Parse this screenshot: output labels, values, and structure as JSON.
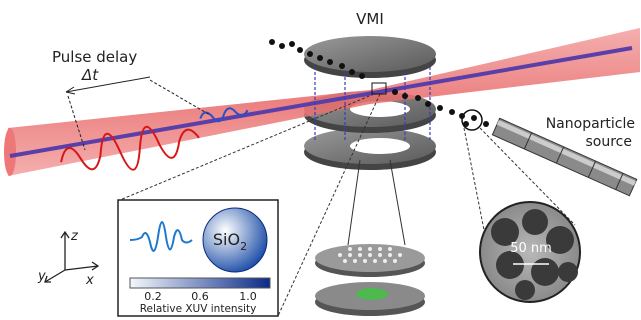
{
  "labels": {
    "vmi": "VMI",
    "pulse_delay": "Pulse delay",
    "delta_t": "Δt",
    "source_line1": "Nanoparticle",
    "source_line2": "source",
    "scale_bar": "50 nm"
  },
  "axes": {
    "z": "z",
    "y": "y",
    "x": "x"
  },
  "inset": {
    "material": {
      "text": "SiO",
      "subscript": "2"
    },
    "colorbar_ticks": [
      "0.2",
      "0.6",
      "1.0"
    ],
    "colorbar_label": "Relative XUV intensity"
  }
}
